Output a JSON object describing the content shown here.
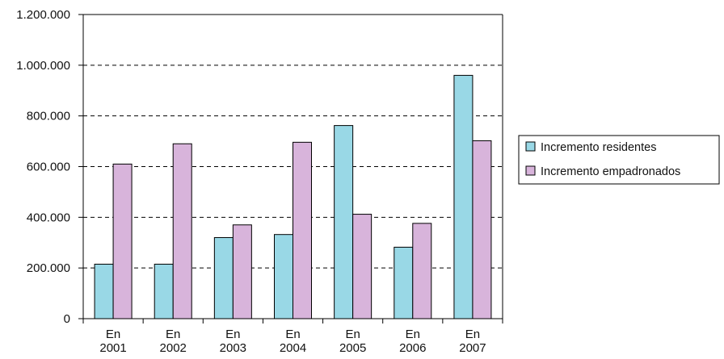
{
  "chart_data": {
    "type": "bar",
    "categories": [
      [
        "En",
        "2001"
      ],
      [
        "En",
        "2002"
      ],
      [
        "En",
        "2003"
      ],
      [
        "En",
        "2004"
      ],
      [
        "En",
        "2005"
      ],
      [
        "En",
        "2006"
      ],
      [
        "En",
        "2007"
      ]
    ],
    "series": [
      {
        "name": "Incremento residentes",
        "color": "#99d8e6",
        "values": [
          215000,
          215000,
          320000,
          332000,
          762000,
          282000,
          960000
        ]
      },
      {
        "name": "Incremento empadronados",
        "color": "#d8b4db",
        "values": [
          610000,
          690000,
          370000,
          696000,
          412000,
          376000,
          702000
        ]
      }
    ],
    "ylim": [
      0,
      1200000
    ],
    "yticks": [
      0,
      200000,
      400000,
      600000,
      800000,
      1000000,
      1200000
    ],
    "ytick_labels": [
      "0",
      "200.000",
      "400.000",
      "600.000",
      "800.000",
      "1.000.000",
      "1.200.000"
    ],
    "grid": true,
    "legend_position": "right",
    "title": "",
    "xlabel": "",
    "ylabel": ""
  }
}
